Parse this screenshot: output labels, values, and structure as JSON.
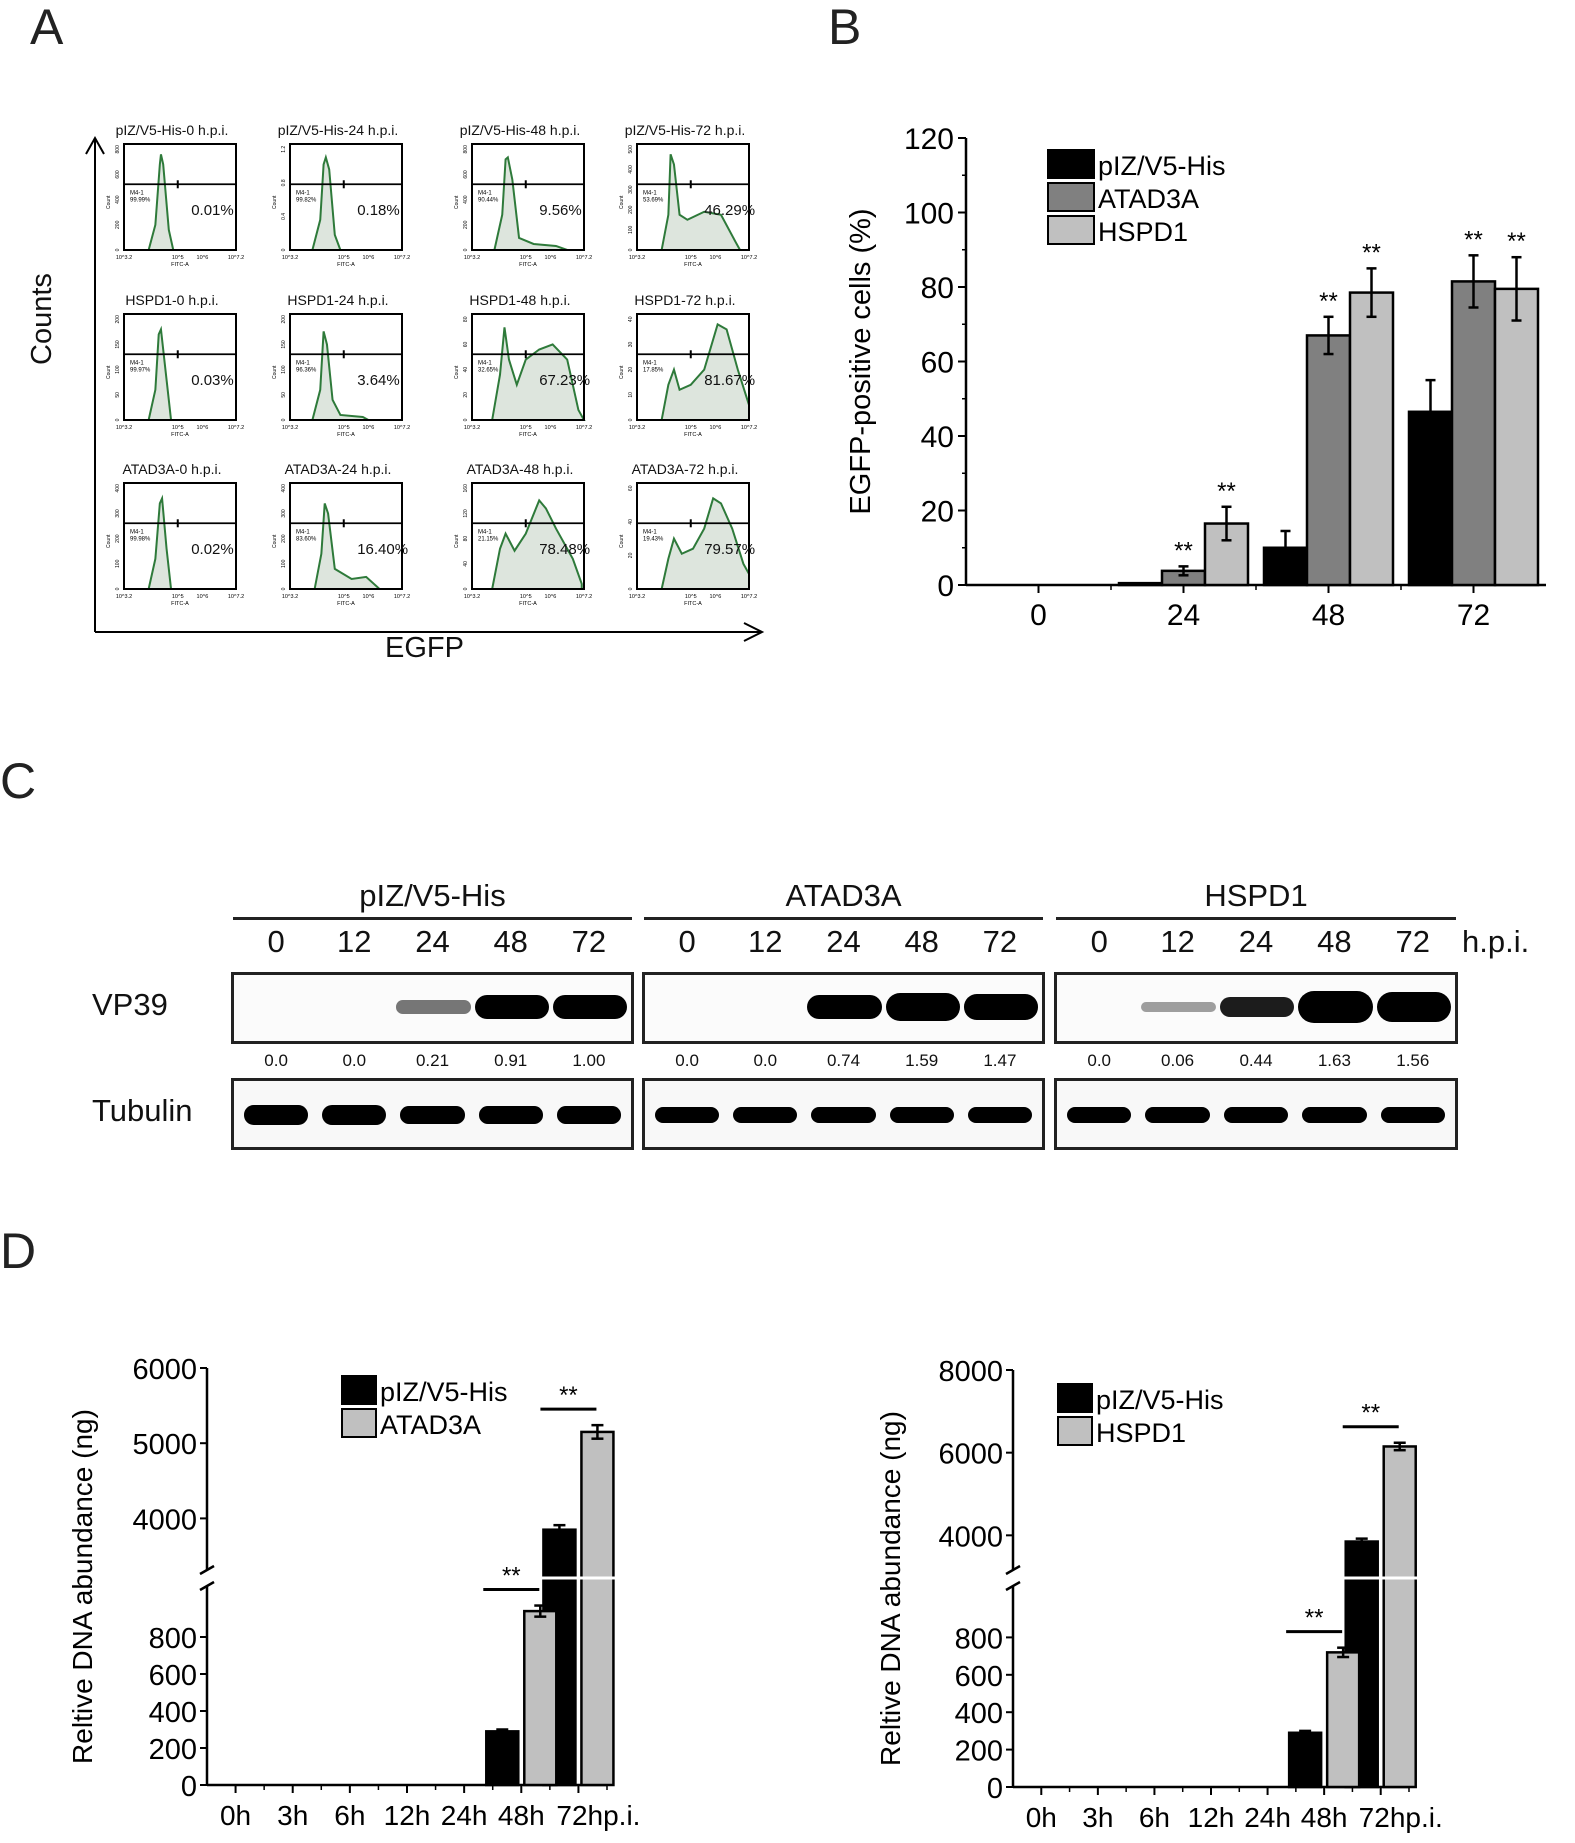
{
  "panels": {
    "A": "A",
    "B": "B",
    "C": "C",
    "D": "D"
  },
  "panel_a": {
    "y_axis_label": "Counts",
    "x_axis_label": "EGFP",
    "x_tick_labels": [
      "10^3.2",
      "10^5",
      "10^6",
      "10^7.2"
    ],
    "x_channel_label": "FITC-A",
    "y_label_small": "Count",
    "gate_label": "M4-1",
    "rows": [
      {
        "group": "pIZ/V5-His",
        "plots": [
          {
            "title": "pIZ/V5-His-0 h.p.i.",
            "pct": "0.01%",
            "gate_pct": "99.99%",
            "y_ticks": [
              "0",
              "200",
              "400",
              "600",
              "800"
            ]
          },
          {
            "title": "pIZ/V5-His-24 h.p.i.",
            "pct": "0.18%",
            "gate_pct": "99.82%",
            "y_ticks": [
              "0",
              "0.4",
              "0.8",
              "1.2"
            ]
          },
          {
            "title": "pIZ/V5-His-48 h.p.i.",
            "pct": "9.56%",
            "gate_pct": "90.44%",
            "y_ticks": [
              "0",
              "200",
              "400",
              "600",
              "800"
            ]
          },
          {
            "title": "pIZ/V5-His-72 h.p.i.",
            "pct": "46.29%",
            "gate_pct": "53.69%",
            "y_ticks": [
              "0",
              "100",
              "200",
              "300",
              "400",
              "500"
            ]
          }
        ]
      },
      {
        "group": "HSPD1",
        "plots": [
          {
            "title": "HSPD1-0 h.p.i.",
            "pct": "0.03%",
            "gate_pct": "99.97%",
            "y_ticks": [
              "0",
              "50",
              "100",
              "150",
              "200"
            ]
          },
          {
            "title": "HSPD1-24 h.p.i.",
            "pct": "3.64%",
            "gate_pct": "96.36%",
            "y_ticks": [
              "0",
              "50",
              "100",
              "150",
              "200"
            ]
          },
          {
            "title": "HSPD1-48 h.p.i.",
            "pct": "67.23%",
            "gate_pct": "32.65%",
            "y_ticks": [
              "0",
              "20",
              "40",
              "60",
              "80"
            ]
          },
          {
            "title": "HSPD1-72 h.p.i.",
            "pct": "81.67%",
            "gate_pct": "17.85%",
            "y_ticks": [
              "0",
              "10",
              "20",
              "30",
              "40"
            ]
          }
        ]
      },
      {
        "group": "ATAD3A",
        "plots": [
          {
            "title": "ATAD3A-0 h.p.i.",
            "pct": "0.02%",
            "gate_pct": "99.98%",
            "y_ticks": [
              "0",
              "100",
              "200",
              "300",
              "400"
            ]
          },
          {
            "title": "ATAD3A-24 h.p.i.",
            "pct": "16.40%",
            "gate_pct": "83.60%",
            "y_ticks": [
              "0",
              "100",
              "200",
              "300",
              "400"
            ]
          },
          {
            "title": "ATAD3A-48 h.p.i.",
            "pct": "78.48%",
            "gate_pct": "21.15%",
            "y_ticks": [
              "0",
              "40",
              "80",
              "120",
              "160"
            ]
          },
          {
            "title": "ATAD3A-72 h.p.i.",
            "pct": "79.57%",
            "gate_pct": "19.43%",
            "y_ticks": [
              "0",
              "20",
              "40",
              "60"
            ]
          }
        ]
      }
    ]
  },
  "panel_c": {
    "groups": [
      "pIZ/V5-His",
      "ATAD3A",
      "HSPD1"
    ],
    "timepoints": [
      "0",
      "12",
      "24",
      "48",
      "72"
    ],
    "unit": "h.p.i.",
    "rows": [
      "VP39",
      "Tubulin"
    ],
    "quant": [
      [
        "0.0",
        "0.0",
        "0.21",
        "0.91",
        "1.00"
      ],
      [
        "0.0",
        "0.0",
        "0.74",
        "1.59",
        "1.47"
      ],
      [
        "0.0",
        "0.06",
        "0.44",
        "1.63",
        "1.56"
      ]
    ]
  },
  "chart_data": [
    {
      "id": "B",
      "type": "bar",
      "title": "",
      "xlabel": "",
      "ylabel": "EGFP-positive cells (%)",
      "categories": [
        "0",
        "24",
        "48",
        "72"
      ],
      "ylim": [
        0,
        120
      ],
      "yticks": [
        "0",
        "20",
        "40",
        "60",
        "80",
        "100",
        "120"
      ],
      "legend_position": "upper-left",
      "series": [
        {
          "name": "pIZ/V5-His",
          "color": "#000000",
          "values": [
            0,
            0.5,
            10,
            46.5
          ],
          "errors": [
            0,
            0,
            4.5,
            8.5
          ],
          "sig": [
            "",
            "",
            "",
            ""
          ]
        },
        {
          "name": "ATAD3A",
          "color": "#808080",
          "values": [
            0,
            3.8,
            67,
            81.5
          ],
          "errors": [
            0,
            1.2,
            5,
            7
          ],
          "sig": [
            "",
            "**",
            "**",
            "**"
          ]
        },
        {
          "name": "HSPD1",
          "color": "#c0c0c0",
          "values": [
            0,
            16.5,
            78.5,
            79.5
          ],
          "errors": [
            0,
            4.5,
            6.5,
            8.5
          ],
          "sig": [
            "",
            "**",
            "**",
            "**"
          ]
        }
      ]
    },
    {
      "id": "D-left",
      "type": "bar",
      "title": "",
      "xlabel": "",
      "ylabel": "Reltive DNA abundance (ng)",
      "categories": [
        "0h",
        "3h",
        "6h",
        "12h",
        "24h",
        "48h",
        "72hp.i."
      ],
      "axis_break": [
        1000,
        3500
      ],
      "yticks_lower": [
        "0",
        "200",
        "400",
        "600",
        "800"
      ],
      "yticks_upper": [
        "4000",
        "5000",
        "6000"
      ],
      "ylim": [
        0,
        6000
      ],
      "legend_position": "upper-left",
      "series": [
        {
          "name": "pIZ/V5-His",
          "color": "#000000",
          "values": [
            0,
            0,
            0,
            0,
            0,
            290,
            3850
          ],
          "errors": [
            0,
            0,
            0,
            0,
            0,
            10,
            60
          ]
        },
        {
          "name": "ATAD3A",
          "color": "#c0c0c0",
          "values": [
            0,
            0,
            0,
            0,
            0,
            940,
            5150
          ],
          "errors": [
            0,
            0,
            0,
            0,
            0,
            30,
            90
          ]
        }
      ],
      "annotations": [
        {
          "category": "48h",
          "text": "**"
        },
        {
          "category": "72hp.i.",
          "text": "**"
        }
      ]
    },
    {
      "id": "D-right",
      "type": "bar",
      "title": "",
      "xlabel": "",
      "ylabel": "Reltive DNA abundance (ng)",
      "categories": [
        "0h",
        "3h",
        "6h",
        "12h",
        "24h",
        "48h",
        "72hp.i."
      ],
      "axis_break": [
        1000,
        3500
      ],
      "yticks_lower": [
        "0",
        "200",
        "400",
        "600",
        "800"
      ],
      "yticks_upper": [
        "4000",
        "6000",
        "8000"
      ],
      "ylim": [
        0,
        8000
      ],
      "legend_position": "upper-left",
      "series": [
        {
          "name": "pIZ/V5-His",
          "color": "#000000",
          "values": [
            0,
            0,
            0,
            0,
            0,
            290,
            3850
          ],
          "errors": [
            0,
            0,
            0,
            0,
            0,
            10,
            70
          ]
        },
        {
          "name": "HSPD1",
          "color": "#c0c0c0",
          "values": [
            0,
            0,
            0,
            0,
            0,
            720,
            6150
          ],
          "errors": [
            0,
            0,
            0,
            0,
            0,
            25,
            90
          ]
        }
      ],
      "annotations": [
        {
          "category": "48h",
          "text": "**"
        },
        {
          "category": "72hp.i.",
          "text": "**"
        }
      ]
    }
  ]
}
